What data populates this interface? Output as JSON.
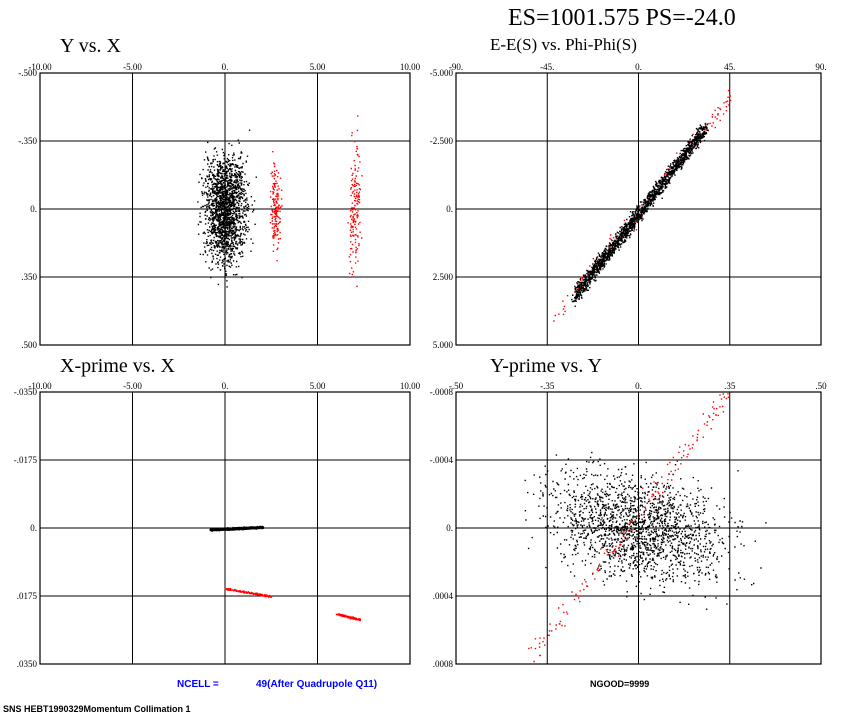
{
  "header": {
    "title": "ES=1001.575 PS=-24.0"
  },
  "footer": {
    "ncell_label": "NCELL =",
    "ncell_value": "49(After Quadrupole Q11)",
    "ngood": "NGOOD=9999",
    "caption": "SNS HEBT1990329Momentum Collimation 1"
  },
  "colors": {
    "primary_particles": "#000000",
    "secondary_particles": "#ff0000",
    "info_text": "#0000ff"
  },
  "chart_data": [
    {
      "type": "scatter",
      "title": "Y vs. X",
      "x_ticks": [
        "-10.00",
        "-5.00",
        "0.",
        "5.00",
        "10.00"
      ],
      "y_ticks": [
        "-.500",
        "-.350",
        "0.",
        ".350",
        ".500"
      ],
      "xlim": [
        -10,
        10
      ],
      "ylim": [
        -0.5,
        0.5
      ],
      "grid": true,
      "series": [
        {
          "color": "black",
          "distribution": {
            "x_center": 0.0,
            "x_halfwidth": 2.0,
            "y_center": 0.0,
            "y_halfwidth": 0.35
          }
        },
        {
          "color": "red",
          "distribution": {
            "x_center": 2.7,
            "x_halfwidth": 0.5,
            "y_center": 0.0,
            "y_halfwidth": 0.3
          }
        },
        {
          "color": "red",
          "distribution": {
            "x_center": 7.0,
            "x_halfwidth": 0.6,
            "y_center": 0.0,
            "y_halfwidth": 0.45
          }
        }
      ]
    },
    {
      "type": "scatter",
      "title": "E-E(S) vs. Phi-Phi(S)",
      "x_ticks": [
        "-90.",
        "-45.",
        "0.",
        "45.",
        "90."
      ],
      "y_ticks": [
        "-5.000",
        "-2.500",
        "0.",
        "2.500",
        "5.000"
      ],
      "xlim": [
        -90,
        90
      ],
      "ylim": [
        -5,
        5
      ],
      "grid": true,
      "series": [
        {
          "color": "red",
          "distribution": {
            "x_from": -42,
            "x_to": 46,
            "correlation": "linear",
            "y_at_x_min": 4.0,
            "y_at_x_max": -4.2,
            "y_spread": 0.55
          }
        },
        {
          "color": "black",
          "distribution": {
            "x_from": -32,
            "x_to": 33,
            "correlation": "linear",
            "y_at_x_min": 3.2,
            "y_at_x_max": -3.0,
            "y_spread": 0.5
          }
        }
      ]
    },
    {
      "type": "scatter",
      "title": "X-prime vs. X",
      "x_ticks": [
        "-10.00",
        "-5.00",
        "0.",
        "5.00",
        "10.00"
      ],
      "y_ticks": [
        "-.0350",
        "-.0175",
        "0.",
        ".0175",
        ".0350"
      ],
      "xlim": [
        -10,
        10
      ],
      "ylim": [
        -0.035,
        0.035
      ],
      "grid": true,
      "series": [
        {
          "color": "black",
          "distribution": {
            "x_from": -0.8,
            "x_to": 2.0,
            "y_at_x_min": 0.0003,
            "y_at_x_max": -0.0003,
            "y_spread": 0.0004
          }
        },
        {
          "color": "red",
          "distribution": {
            "x_from": 0.0,
            "x_to": 2.5,
            "y_at_x_min": 0.0155,
            "y_at_x_max": 0.0175,
            "y_spread": 0.0004
          }
        },
        {
          "color": "red",
          "distribution": {
            "x_from": 6.0,
            "x_to": 7.3,
            "y_at_x_min": 0.022,
            "y_at_x_max": 0.0235,
            "y_spread": 0.0004
          }
        }
      ]
    },
    {
      "type": "scatter",
      "title": "Y-prime vs. Y",
      "x_ticks": [
        "-.50",
        "-.35",
        "0.",
        ".35",
        ".50"
      ],
      "y_ticks": [
        "-.0008",
        "-.0004",
        "0.",
        ".0004",
        ".0008"
      ],
      "xlim": [
        -0.5,
        0.5
      ],
      "ylim": [
        -0.0008,
        0.0008
      ],
      "grid": true,
      "series": [
        {
          "color": "black",
          "distribution": {
            "x_center": 0.0,
            "x_halfwidth": 0.42,
            "y_center": 0.0,
            "y_halfwidth": 0.00055,
            "correlation": "positive-tilt"
          }
        },
        {
          "color": "red",
          "distribution": {
            "x_from": -0.3,
            "x_to": 0.25,
            "y_at_x_min": 0.00078,
            "y_at_x_max": -0.0008,
            "y_spread": 0.00012
          }
        }
      ]
    }
  ]
}
